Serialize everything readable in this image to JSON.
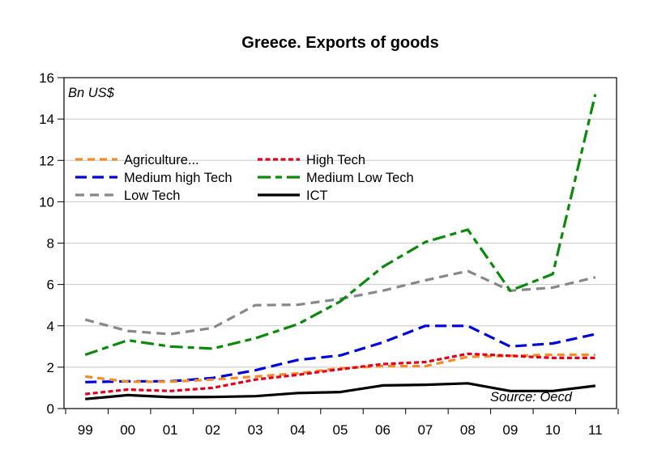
{
  "chart_data": {
    "type": "line",
    "title": "Greece. Exports of goods",
    "unit_label": "Bn US$",
    "source": "Source: Oecd",
    "xlabel": "",
    "ylabel": "Bn US$",
    "categories": [
      "99",
      "00",
      "01",
      "02",
      "03",
      "04",
      "05",
      "06",
      "07",
      "08",
      "09",
      "10",
      "11"
    ],
    "ylim": [
      0,
      16
    ],
    "yticks": [
      0,
      2,
      4,
      6,
      8,
      10,
      12,
      14,
      16
    ],
    "grid": true,
    "legend_position": "upper-left (inside plot, two columns)",
    "series": [
      {
        "name": "Agriculture...",
        "color": "#f28c28",
        "style": "short-dash",
        "values": [
          1.55,
          1.3,
          1.3,
          1.4,
          1.55,
          1.7,
          1.95,
          2.05,
          2.05,
          2.5,
          2.55,
          2.6,
          2.6
        ]
      },
      {
        "name": "High Tech",
        "color": "#e3001b",
        "style": "dot-dash",
        "values": [
          0.7,
          0.92,
          0.85,
          1.0,
          1.4,
          1.63,
          1.9,
          2.15,
          2.25,
          2.65,
          2.55,
          2.45,
          2.45
        ]
      },
      {
        "name": "Medium high Tech",
        "color": "#0000dd",
        "style": "long-dash",
        "values": [
          1.28,
          1.32,
          1.32,
          1.48,
          1.85,
          2.35,
          2.57,
          3.2,
          4.0,
          4.0,
          3.0,
          3.15,
          3.6
        ]
      },
      {
        "name": "Medium Low Tech",
        "color": "#0a8a0a",
        "style": "dash-dot",
        "values": [
          2.6,
          3.3,
          3.0,
          2.9,
          3.4,
          4.08,
          5.18,
          6.85,
          8.05,
          8.65,
          5.7,
          6.5,
          15.2
        ]
      },
      {
        "name": "Low Tech",
        "color": "#888888",
        "style": "medium-dash",
        "values": [
          4.3,
          3.75,
          3.6,
          3.9,
          5.0,
          5.02,
          5.3,
          5.7,
          6.2,
          6.65,
          5.7,
          5.85,
          6.35
        ]
      },
      {
        "name": "ICT",
        "color": "#000000",
        "style": "solid",
        "values": [
          0.46,
          0.65,
          0.55,
          0.56,
          0.6,
          0.75,
          0.8,
          1.12,
          1.15,
          1.22,
          0.85,
          0.85,
          1.1
        ]
      }
    ]
  }
}
